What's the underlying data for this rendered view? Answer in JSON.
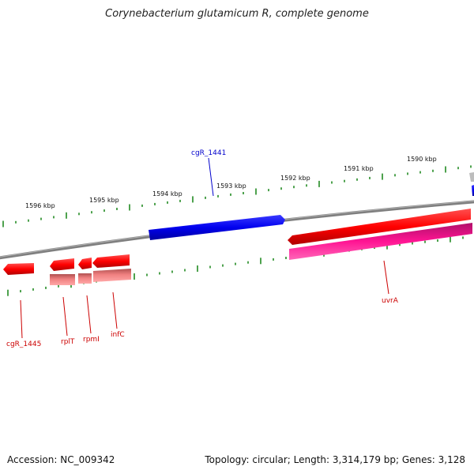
{
  "title": "Corynebacterium glutamicum R, complete genome",
  "footer": {
    "accession": "Accession: NC_009342",
    "topology": "Topology: circular; Length: 3,314,179 bp; Genes: 3,128"
  },
  "scale_labels": [
    "1590 kbp",
    "1591 kbp",
    "1592 kbp",
    "1593 kbp",
    "1594 kbp",
    "1595 kbp",
    "1596 kbp"
  ],
  "gene_labels": [
    {
      "id": "cgR_1441",
      "color": "#0000cc"
    },
    {
      "id": "cgR_1445",
      "color": "#cc0000"
    },
    {
      "id": "rplT",
      "color": "#cc0000"
    },
    {
      "id": "rpmI",
      "color": "#cc0000"
    },
    {
      "id": "infC",
      "color": "#cc0000"
    },
    {
      "id": "uvrA",
      "color": "#cc0000"
    }
  ],
  "colors": {
    "forward_gene": "#0000ee",
    "reverse_gene": "#ff0000",
    "rna_light": "#f08080",
    "uvrA_secondary": "#ee1493",
    "backbone": "#808080",
    "ticks": "#228b22"
  }
}
